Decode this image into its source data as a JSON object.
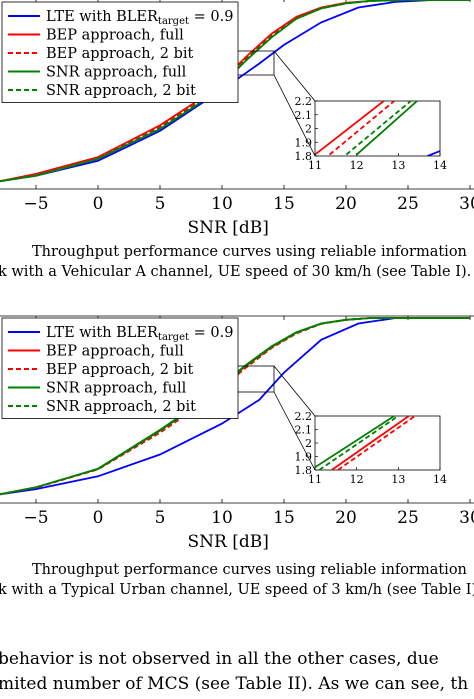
{
  "chart_data": [
    {
      "type": "line",
      "xlabel": "SNR [dB]",
      "xlim": [
        -8,
        30
      ],
      "x_ticks": [
        "−5",
        "0",
        "5",
        "10",
        "15",
        "20",
        "25",
        "30"
      ],
      "legend_placement": "top-left",
      "series": [
        {
          "name": "LTE with BLER",
          "name_sub": "target",
          "name_suffix": " = 0.9",
          "color": "#0000ff",
          "style": "solid",
          "x": [
            -8,
            -5,
            0,
            5,
            10,
            13,
            15,
            18,
            21,
            24,
            27,
            30
          ],
          "y": [
            0.03,
            0.06,
            0.14,
            0.3,
            0.52,
            0.66,
            0.76,
            0.88,
            0.96,
            0.99,
            1.0,
            1.0
          ]
        },
        {
          "name": "BEP approach, full",
          "color": "#ff0000",
          "style": "solid",
          "x": [
            -8,
            -5,
            0,
            5,
            8,
            10,
            12,
            14,
            16,
            18,
            20,
            22,
            25,
            30
          ],
          "y": [
            0.03,
            0.07,
            0.16,
            0.33,
            0.46,
            0.57,
            0.7,
            0.82,
            0.91,
            0.96,
            0.985,
            0.995,
            1.0,
            1.0
          ]
        },
        {
          "name": "BEP approach, 2 bit",
          "color": "#ff0000",
          "style": "dashed",
          "x": [
            -8,
            -5,
            0,
            5,
            8,
            10,
            12,
            14,
            16,
            18,
            20,
            22,
            25,
            30
          ],
          "y": [
            0.03,
            0.065,
            0.155,
            0.32,
            0.45,
            0.56,
            0.69,
            0.81,
            0.9,
            0.955,
            0.983,
            0.995,
            1.0,
            1.0
          ]
        },
        {
          "name": "SNR approach, full",
          "color": "#008000",
          "style": "solid",
          "x": [
            -8,
            -5,
            0,
            5,
            8,
            10,
            12,
            14,
            16,
            18,
            20,
            22,
            25,
            30
          ],
          "y": [
            0.03,
            0.06,
            0.15,
            0.31,
            0.44,
            0.55,
            0.68,
            0.8,
            0.9,
            0.955,
            0.982,
            0.995,
            1.0,
            1.0
          ]
        },
        {
          "name": "SNR approach, 2 bit",
          "color": "#008000",
          "style": "dashed",
          "x": [
            -8,
            -5,
            0,
            5,
            8,
            10,
            12,
            14,
            16,
            18,
            20,
            22,
            25,
            30
          ],
          "y": [
            0.03,
            0.062,
            0.152,
            0.315,
            0.445,
            0.555,
            0.685,
            0.805,
            0.9,
            0.955,
            0.982,
            0.995,
            1.0,
            1.0
          ]
        }
      ],
      "inset": {
        "xlim": [
          11,
          14
        ],
        "ylim": [
          1.8,
          2.2
        ],
        "x_ticks": [
          "11",
          "12",
          "13",
          "14"
        ],
        "y_ticks": [
          "2.2",
          "2.1",
          "2",
          "1.9",
          "1.8"
        ],
        "series": [
          {
            "color": "#0000ff",
            "style": "solid",
            "x": [
              13.7,
              14.2
            ],
            "y": [
              1.8,
              1.86
            ]
          },
          {
            "color": "#ff0000",
            "style": "solid",
            "x": [
              11.0,
              12.65
            ],
            "y": [
              1.81,
              2.2
            ]
          },
          {
            "color": "#ff0000",
            "style": "dashed",
            "x": [
              11.35,
              12.9
            ],
            "y": [
              1.81,
              2.2
            ]
          },
          {
            "color": "#008000",
            "style": "solid",
            "x": [
              12.0,
              13.45
            ],
            "y": [
              1.81,
              2.2
            ]
          },
          {
            "color": "#008000",
            "style": "dashed",
            "x": [
              11.75,
              13.3
            ],
            "y": [
              1.81,
              2.2
            ]
          }
        ]
      }
    },
    {
      "type": "line",
      "xlabel": "SNR [dB]",
      "xlim": [
        -8,
        30
      ],
      "x_ticks": [
        "−5",
        "0",
        "5",
        "10",
        "15",
        "20",
        "25",
        "30"
      ],
      "legend_placement": "top-left",
      "series": [
        {
          "name": "LTE with BLER",
          "name_sub": "target",
          "name_suffix": " = 0.9",
          "color": "#0000ff",
          "style": "solid",
          "x": [
            -8,
            -5,
            0,
            5,
            10,
            13,
            15,
            18,
            21,
            24,
            27,
            30
          ],
          "y": [
            0.03,
            0.06,
            0.13,
            0.25,
            0.42,
            0.55,
            0.7,
            0.88,
            0.97,
            1.0,
            1.0,
            1.0
          ]
        },
        {
          "name": "BEP approach, full",
          "color": "#ff0000",
          "style": "solid",
          "x": [
            -8,
            -5,
            0,
            5,
            8,
            10,
            12,
            14,
            16,
            18,
            20,
            22,
            25,
            30
          ],
          "y": [
            0.03,
            0.07,
            0.17,
            0.38,
            0.52,
            0.63,
            0.74,
            0.84,
            0.92,
            0.97,
            0.99,
            1.0,
            1.0,
            1.0
          ]
        },
        {
          "name": "BEP approach, 2 bit",
          "color": "#ff0000",
          "style": "dashed",
          "x": [
            -8,
            -5,
            0,
            5,
            8,
            10,
            12,
            14,
            16,
            18,
            20,
            22,
            25,
            30
          ],
          "y": [
            0.03,
            0.068,
            0.168,
            0.37,
            0.51,
            0.62,
            0.73,
            0.835,
            0.915,
            0.968,
            0.99,
            1.0,
            1.0,
            1.0
          ]
        },
        {
          "name": "SNR approach, full",
          "color": "#008000",
          "style": "solid",
          "x": [
            -8,
            -5,
            0,
            5,
            8,
            10,
            12,
            14,
            16,
            18,
            20,
            22,
            25,
            30
          ],
          "y": [
            0.03,
            0.07,
            0.172,
            0.385,
            0.525,
            0.635,
            0.745,
            0.845,
            0.922,
            0.97,
            0.99,
            1.0,
            1.0,
            1.0
          ]
        },
        {
          "name": "SNR approach, 2 bit",
          "color": "#008000",
          "style": "dashed",
          "x": [
            -8,
            -5,
            0,
            5,
            8,
            10,
            12,
            14,
            16,
            18,
            20,
            22,
            25,
            30
          ],
          "y": [
            0.03,
            0.069,
            0.17,
            0.378,
            0.518,
            0.628,
            0.738,
            0.84,
            0.918,
            0.968,
            0.99,
            1.0,
            1.0,
            1.0
          ]
        }
      ],
      "inset": {
        "xlim": [
          11,
          14
        ],
        "ylim": [
          1.8,
          2.2
        ],
        "x_ticks": [
          "11",
          "12",
          "13",
          "14"
        ],
        "y_ticks": [
          "2.2",
          "2.1",
          "2",
          "1.9",
          "1.8"
        ],
        "series": [
          {
            "color": "#ff0000",
            "style": "solid",
            "x": [
              11.4,
              13.25
            ],
            "y": [
              1.8,
              2.2
            ]
          },
          {
            "color": "#ff0000",
            "style": "dashed",
            "x": [
              11.55,
              13.4
            ],
            "y": [
              1.8,
              2.2
            ]
          },
          {
            "color": "#008000",
            "style": "solid",
            "x": [
              11.0,
              12.9
            ],
            "y": [
              1.82,
              2.2
            ]
          },
          {
            "color": "#008000",
            "style": "dashed",
            "x": [
              11.1,
              13.0
            ],
            "y": [
              1.8,
              2.2
            ]
          }
        ]
      }
    }
  ],
  "captions": [
    {
      "line1": "Throughput performance curves using reliable information",
      "line2": "k with a Vehicular A channel, UE speed of 30 km/h (see Table I)."
    },
    {
      "line1": "Throughput performance curves using reliable information",
      "line2": "k with a Typical Urban channel, UE speed of 3 km/h (see Table I)."
    }
  ],
  "body": {
    "line1": "behavior is not observed in all the other cases, due",
    "line2": "mited number of MCS (see Table II). As we can see, th"
  }
}
